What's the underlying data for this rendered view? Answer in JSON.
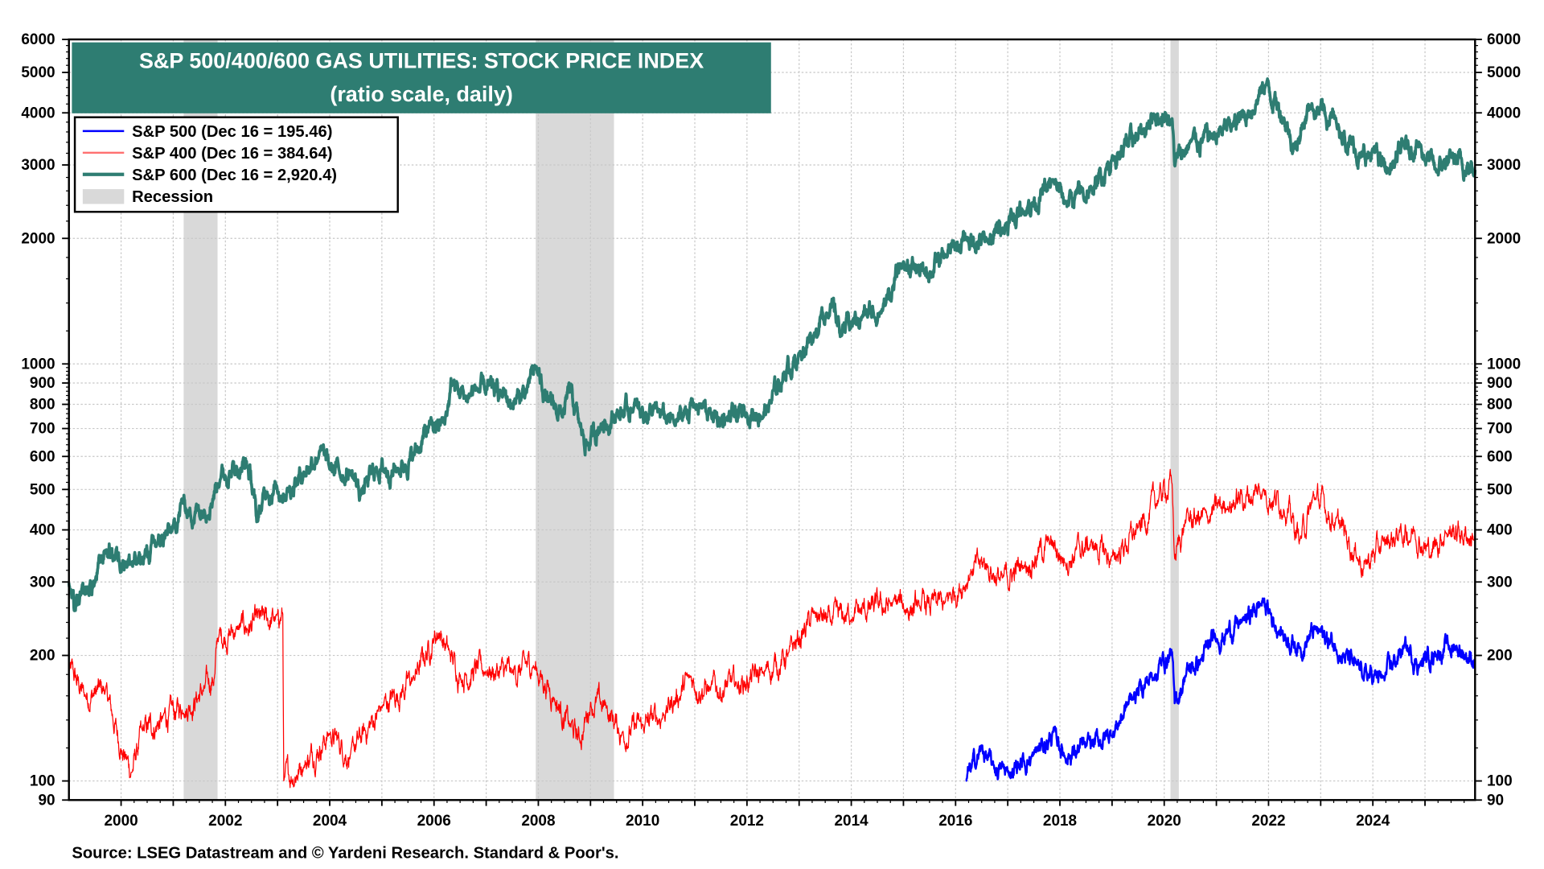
{
  "chart_data": {
    "type": "line",
    "title": "S&P 500/400/600 GAS UTILITIES: STOCK PRICE INDEX",
    "subtitle": "(ratio scale, daily)",
    "source": "Source: LSEG Datastream and © Yardeni Research. Standard & Poor's.",
    "yscale": "log",
    "ylim": [
      90,
      6000
    ],
    "xlim": [
      1999.0,
      2025.96
    ],
    "grid": true,
    "legend_placement": "top-left",
    "y_ticks": [
      90,
      100,
      200,
      300,
      400,
      500,
      600,
      700,
      800,
      900,
      1000,
      2000,
      3000,
      4000,
      5000,
      6000
    ],
    "y_tick_labels": [
      "90",
      "100",
      "200",
      "300",
      "400",
      "500",
      "600",
      "700",
      "800",
      "900",
      "1000",
      "2000",
      "3000",
      "4000",
      "5000",
      "6000"
    ],
    "x_ticks": [
      2000,
      2002,
      2004,
      2006,
      2008,
      2010,
      2012,
      2014,
      2016,
      2018,
      2020,
      2022,
      2024
    ],
    "x_tick_labels": [
      "2000",
      "2002",
      "2004",
      "2006",
      "2008",
      "2010",
      "2012",
      "2014",
      "2016",
      "2018",
      "2020",
      "2022",
      "2024"
    ],
    "recessions": [
      [
        2001.2,
        2001.85
      ],
      [
        2007.95,
        2009.45
      ],
      [
        2020.12,
        2020.28
      ]
    ],
    "recession_label": "Recession",
    "series": [
      {
        "name": "S&P 500",
        "legend": "S&P 500 (Dec 16 = 195.46)",
        "color": "#0000ff",
        "width": 2,
        "points": [
          [
            2016.2,
            100
          ],
          [
            2016.5,
            120
          ],
          [
            2016.7,
            108
          ],
          [
            2017.0,
            105
          ],
          [
            2017.5,
            115
          ],
          [
            2017.9,
            130
          ],
          [
            2018.1,
            115
          ],
          [
            2018.5,
            120
          ],
          [
            2019.0,
            130
          ],
          [
            2019.4,
            160
          ],
          [
            2019.8,
            180
          ],
          [
            2020.15,
            205
          ],
          [
            2020.2,
            150
          ],
          [
            2020.4,
            180
          ],
          [
            2020.7,
            195
          ],
          [
            2021.0,
            220
          ],
          [
            2021.5,
            240
          ],
          [
            2021.9,
            270
          ],
          [
            2022.2,
            230
          ],
          [
            2022.6,
            210
          ],
          [
            2022.9,
            230
          ],
          [
            2023.3,
            210
          ],
          [
            2023.7,
            185
          ],
          [
            2023.8,
            180
          ],
          [
            2024.2,
            175
          ],
          [
            2024.6,
            210
          ],
          [
            2024.9,
            190
          ],
          [
            2025.2,
            205
          ],
          [
            2025.6,
            210
          ],
          [
            2025.96,
            195.46
          ]
        ]
      },
      {
        "name": "S&P 400",
        "legend": "S&P 400 (Dec 16 = 384.64)",
        "color": "#ff0000",
        "width": 1,
        "points": [
          [
            1999.0,
            185
          ],
          [
            1999.3,
            160
          ],
          [
            1999.7,
            165
          ],
          [
            2000.0,
            120
          ],
          [
            2000.2,
            105
          ],
          [
            2000.4,
            130
          ],
          [
            2000.8,
            140
          ],
          [
            2001.2,
            150
          ],
          [
            2001.6,
            165
          ],
          [
            2001.8,
            180
          ],
          [
            2001.85,
            220
          ],
          [
            2002.2,
            230
          ],
          [
            2003.0,
            245
          ],
          [
            2003.1,
            250
          ],
          [
            2003.12,
            100
          ],
          [
            2003.5,
            110
          ],
          [
            2004.0,
            130
          ],
          [
            2004.4,
            115
          ],
          [
            2005.0,
            150
          ],
          [
            2005.6,
            175
          ],
          [
            2006.0,
            220
          ],
          [
            2006.1,
            230
          ],
          [
            2006.3,
            200
          ],
          [
            2006.5,
            180
          ],
          [
            2007.0,
            185
          ],
          [
            2007.5,
            180
          ],
          [
            2007.9,
            190
          ],
          [
            2008.3,
            160
          ],
          [
            2008.6,
            135
          ],
          [
            2008.8,
            125
          ],
          [
            2009.0,
            155
          ],
          [
            2009.3,
            150
          ],
          [
            2009.6,
            130
          ],
          [
            2010.0,
            135
          ],
          [
            2010.4,
            145
          ],
          [
            2010.9,
            175
          ],
          [
            2011.3,
            165
          ],
          [
            2011.8,
            170
          ],
          [
            2012.3,
            180
          ],
          [
            2012.8,
            200
          ],
          [
            2013.3,
            250
          ],
          [
            2013.6,
            240
          ],
          [
            2014.0,
            250
          ],
          [
            2014.8,
            265
          ],
          [
            2015.3,
            260
          ],
          [
            2015.8,
            265
          ],
          [
            2016.3,
            320
          ],
          [
            2016.6,
            330
          ],
          [
            2016.9,
            300
          ],
          [
            2017.3,
            330
          ],
          [
            2017.8,
            370
          ],
          [
            2018.1,
            340
          ],
          [
            2018.6,
            370
          ],
          [
            2019.0,
            340
          ],
          [
            2019.5,
            400
          ],
          [
            2019.9,
            480
          ],
          [
            2020.15,
            520
          ],
          [
            2020.2,
            340
          ],
          [
            2020.4,
            420
          ],
          [
            2020.8,
            430
          ],
          [
            2021.2,
            460
          ],
          [
            2021.9,
            500
          ],
          [
            2022.3,
            460
          ],
          [
            2022.6,
            380
          ],
          [
            2022.9,
            480
          ],
          [
            2023.3,
            420
          ],
          [
            2023.7,
            350
          ],
          [
            2023.85,
            330
          ],
          [
            2024.2,
            370
          ],
          [
            2024.5,
            390
          ],
          [
            2024.8,
            400
          ],
          [
            2025.1,
            350
          ],
          [
            2025.4,
            400
          ],
          [
            2025.96,
            384.64
          ]
        ]
      },
      {
        "name": "S&P 600",
        "legend": "S&P 600 (Dec 16 = 2,920.4)",
        "color": "#2e7d72",
        "width": 3,
        "points": [
          [
            1999.0,
            300
          ],
          [
            1999.1,
            255
          ],
          [
            1999.5,
            300
          ],
          [
            1999.7,
            360
          ],
          [
            2000.1,
            340
          ],
          [
            2000.3,
            330
          ],
          [
            2000.7,
            370
          ],
          [
            2001.0,
            400
          ],
          [
            2001.2,
            470
          ],
          [
            2001.3,
            440
          ],
          [
            2001.6,
            450
          ],
          [
            2001.9,
            540
          ],
          [
            2002.2,
            560
          ],
          [
            2002.4,
            580
          ],
          [
            2002.5,
            520
          ],
          [
            2002.6,
            420
          ],
          [
            2002.8,
            500
          ],
          [
            2003.2,
            500
          ],
          [
            2003.5,
            550
          ],
          [
            2003.8,
            620
          ],
          [
            2004.0,
            560
          ],
          [
            2004.4,
            550
          ],
          [
            2004.6,
            490
          ],
          [
            2004.9,
            560
          ],
          [
            2005.3,
            560
          ],
          [
            2005.6,
            600
          ],
          [
            2005.9,
            700
          ],
          [
            2006.2,
            720
          ],
          [
            2006.35,
            900
          ],
          [
            2006.6,
            830
          ],
          [
            2006.8,
            870
          ],
          [
            2007.3,
            850
          ],
          [
            2007.5,
            800
          ],
          [
            2007.8,
            870
          ],
          [
            2007.95,
            980
          ],
          [
            2008.2,
            800
          ],
          [
            2008.5,
            760
          ],
          [
            2008.6,
            860
          ],
          [
            2008.8,
            700
          ],
          [
            2008.95,
            640
          ],
          [
            2009.2,
            720
          ],
          [
            2009.5,
            760
          ],
          [
            2009.8,
            780
          ],
          [
            2010.3,
            760
          ],
          [
            2010.6,
            720
          ],
          [
            2011.0,
            800
          ],
          [
            2011.3,
            760
          ],
          [
            2011.6,
            730
          ],
          [
            2012.0,
            760
          ],
          [
            2012.4,
            780
          ],
          [
            2012.7,
            950
          ],
          [
            2013.0,
            1050
          ],
          [
            2013.3,
            1200
          ],
          [
            2013.6,
            1400
          ],
          [
            2013.8,
            1200
          ],
          [
            2014.2,
            1300
          ],
          [
            2014.6,
            1350
          ],
          [
            2015.0,
            1750
          ],
          [
            2015.4,
            1650
          ],
          [
            2015.8,
            1800
          ],
          [
            2016.2,
            2000
          ],
          [
            2016.6,
            1950
          ],
          [
            2016.9,
            2150
          ],
          [
            2017.3,
            2350
          ],
          [
            2017.9,
            2700
          ],
          [
            2018.1,
            2450
          ],
          [
            2018.6,
            2600
          ],
          [
            2019.0,
            3100
          ],
          [
            2019.6,
            3600
          ],
          [
            2019.8,
            4000
          ],
          [
            2020.15,
            3900
          ],
          [
            2020.2,
            3000
          ],
          [
            2020.5,
            3400
          ],
          [
            2020.9,
            3500
          ],
          [
            2021.3,
            3700
          ],
          [
            2021.6,
            4000
          ],
          [
            2021.95,
            4700
          ],
          [
            2022.3,
            3900
          ],
          [
            2022.5,
            3300
          ],
          [
            2022.8,
            4200
          ],
          [
            2023.3,
            3800
          ],
          [
            2023.8,
            3100
          ],
          [
            2024.0,
            3200
          ],
          [
            2024.3,
            2900
          ],
          [
            2024.6,
            3300
          ],
          [
            2024.9,
            3350
          ],
          [
            2025.2,
            2900
          ],
          [
            2025.5,
            3100
          ],
          [
            2025.96,
            2920.4
          ]
        ]
      }
    ]
  }
}
